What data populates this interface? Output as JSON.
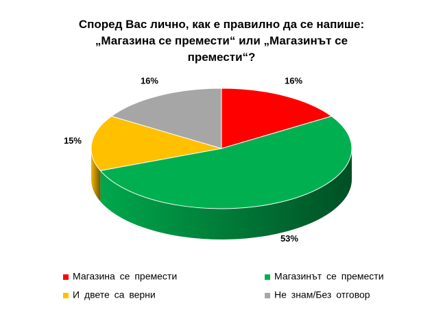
{
  "chart_data": {
    "type": "pie",
    "title": "Според Вас лично, как е правилно да се напише: „Магазина се премести“ или „Магазинът се премести“?",
    "categories": [
      "Магазина се премести",
      "Магазинът се премести",
      "И двете са верни",
      "Не знам/Без отговор"
    ],
    "values": [
      16,
      53,
      15,
      16
    ],
    "value_labels": [
      "16%",
      "53%",
      "15%",
      "16%"
    ],
    "colors": [
      "#ff0000",
      "#00b050",
      "#ffc000",
      "#a6a6a6"
    ],
    "legend": "bottom"
  }
}
